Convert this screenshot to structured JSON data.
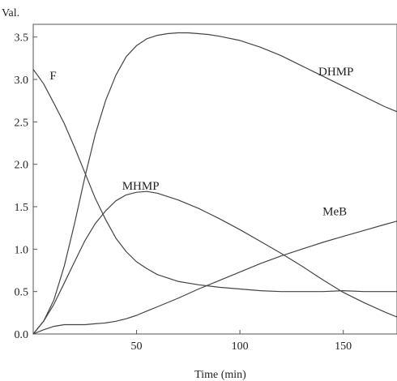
{
  "chart_data": {
    "type": "line",
    "title": "",
    "xlabel": "Time (min)",
    "ylabel": "Val.",
    "xlim": [
      0,
      176
    ],
    "ylim": [
      0,
      3.65
    ],
    "x_ticks": [
      50,
      100,
      150
    ],
    "y_ticks": [
      0.0,
      0.5,
      1.0,
      1.5,
      2.0,
      2.5,
      3.0,
      3.5
    ],
    "x_tick_labels": [
      "50",
      "100",
      "150"
    ],
    "y_tick_labels": [
      "0.0",
      "0.5",
      "1.0",
      "1.5",
      "2.0",
      "2.5",
      "3.0",
      "3.5"
    ],
    "grid": false,
    "line_color": "#444444",
    "series": [
      {
        "name": "F",
        "x": [
          0,
          5,
          10,
          15,
          20,
          25,
          30,
          35,
          40,
          45,
          50,
          55,
          60,
          70,
          80,
          90,
          100,
          110,
          120,
          130,
          140,
          150,
          160,
          176
        ],
        "y": [
          3.12,
          2.95,
          2.72,
          2.48,
          2.2,
          1.9,
          1.6,
          1.35,
          1.13,
          0.97,
          0.85,
          0.77,
          0.7,
          0.62,
          0.58,
          0.55,
          0.53,
          0.51,
          0.5,
          0.5,
          0.5,
          0.51,
          0.5,
          0.5
        ]
      },
      {
        "name": "DHMP",
        "x": [
          0,
          5,
          10,
          15,
          20,
          25,
          30,
          35,
          40,
          45,
          50,
          55,
          60,
          65,
          70,
          75,
          80,
          85,
          90,
          100,
          110,
          120,
          130,
          140,
          150,
          160,
          170,
          176
        ],
        "y": [
          0.0,
          0.15,
          0.4,
          0.8,
          1.3,
          1.85,
          2.35,
          2.75,
          3.05,
          3.27,
          3.4,
          3.48,
          3.52,
          3.54,
          3.55,
          3.55,
          3.54,
          3.53,
          3.51,
          3.46,
          3.38,
          3.28,
          3.16,
          3.04,
          2.92,
          2.8,
          2.68,
          2.62
        ]
      },
      {
        "name": "MHMP",
        "x": [
          0,
          5,
          10,
          15,
          20,
          25,
          30,
          35,
          40,
          45,
          50,
          55,
          60,
          70,
          80,
          90,
          100,
          110,
          120,
          130,
          140,
          150,
          160,
          170,
          176
        ],
        "y": [
          0.0,
          0.15,
          0.35,
          0.6,
          0.85,
          1.1,
          1.3,
          1.45,
          1.57,
          1.64,
          1.67,
          1.68,
          1.66,
          1.58,
          1.48,
          1.36,
          1.23,
          1.09,
          0.95,
          0.8,
          0.64,
          0.49,
          0.37,
          0.26,
          0.2
        ]
      },
      {
        "name": "MeB",
        "x": [
          0,
          5,
          10,
          15,
          20,
          25,
          30,
          35,
          40,
          45,
          50,
          55,
          60,
          70,
          80,
          90,
          100,
          110,
          120,
          130,
          140,
          150,
          160,
          170,
          176
        ],
        "y": [
          0.0,
          0.05,
          0.09,
          0.11,
          0.11,
          0.11,
          0.12,
          0.13,
          0.15,
          0.18,
          0.22,
          0.27,
          0.32,
          0.42,
          0.53,
          0.63,
          0.73,
          0.83,
          0.92,
          1.0,
          1.08,
          1.15,
          1.22,
          1.29,
          1.33
        ]
      }
    ],
    "series_labels": [
      {
        "text": "F",
        "x": 8,
        "y": 3.0
      },
      {
        "text": "DHMP",
        "x": 138,
        "y": 3.05
      },
      {
        "text": "MHMP",
        "x": 43,
        "y": 1.7
      },
      {
        "text": "MeB",
        "x": 140,
        "y": 1.4
      }
    ]
  }
}
